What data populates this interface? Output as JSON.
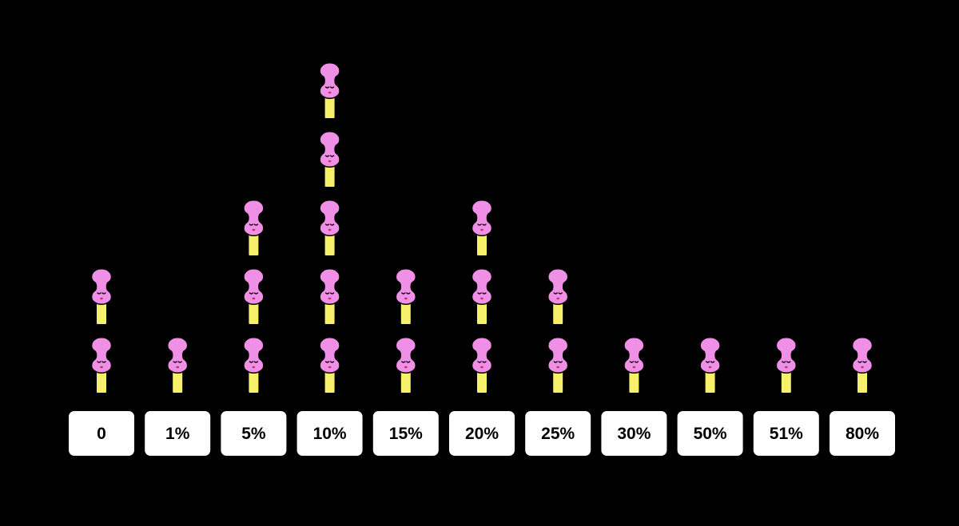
{
  "chart_data": {
    "type": "bar",
    "style": "pictogram",
    "categories": [
      "0",
      "1%",
      "5%",
      "10%",
      "15%",
      "20%",
      "25%",
      "30%",
      "50%",
      "51%",
      "80%"
    ],
    "values": [
      2,
      1,
      3,
      5,
      2,
      3,
      2,
      1,
      1,
      1,
      1
    ],
    "title": "",
    "xlabel": "",
    "ylabel": "",
    "ylim": [
      0,
      5
    ],
    "grid": false,
    "legend": "none"
  },
  "colors": {
    "background": "#000000",
    "figure_head": "#F08FE6",
    "figure_body": "#F6F06B",
    "figure_outline": "#000000",
    "label_box_fill": "#FFFFFF",
    "label_box_stroke": "#000000",
    "label_text": "#000000"
  },
  "icon_names": {
    "figure": "person-icon"
  }
}
